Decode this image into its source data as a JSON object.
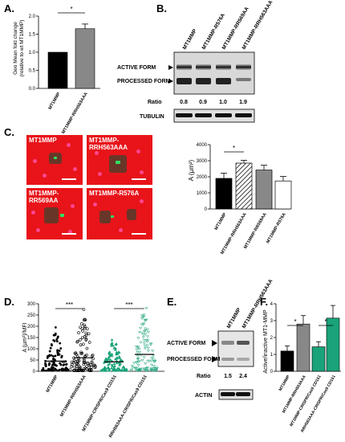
{
  "panels": {
    "A": {
      "letter": "A.",
      "ylabel_line1": "Geo Mean fold change",
      "ylabel_line2": "(relative to wt MT1MMP)",
      "sig": "*",
      "chart_data": {
        "type": "bar",
        "categories": [
          "MT1MMP",
          "MT1MMP-RRH563AAA"
        ],
        "values": [
          1.0,
          1.65
        ],
        "errors": [
          0.0,
          0.13
        ],
        "colors": [
          "#000000",
          "#888888"
        ],
        "ylim": [
          0,
          2
        ],
        "yticks": [
          "0.0",
          "0.5",
          "1.0",
          "1.5",
          "2.0"
        ]
      }
    },
    "B": {
      "letter": "B.",
      "lanes": [
        "MT1MMP",
        "MT1MMP-R576A",
        "MT1MMP-RR569AA",
        "MT1MMP-RRH563AAA"
      ],
      "active_label": "ACTIVE FORM",
      "processed_label": "PROCESSED FORM",
      "ratio_label": "Ratio",
      "ratios": [
        "0.8",
        "0.9",
        "1.0",
        "1.9"
      ],
      "tubulin_label": "TUBULIN"
    },
    "C": {
      "letter": "C.",
      "images": [
        "MT1MMP",
        "MT1MMP-RRH563AAA",
        "MT1MMP-RR569AA",
        "MT1MMP-R576A"
      ],
      "ylabel": "A (µm²)",
      "sig": "*",
      "chart_data": {
        "type": "bar",
        "categories": [
          "MT1MMP",
          "MT1MMP-RRH563AAA",
          "MT1MMP-RR569AA",
          "MT1MMP-R576A"
        ],
        "values": [
          1900,
          2850,
          2420,
          1740
        ],
        "errors": [
          330,
          180,
          300,
          280
        ],
        "fills": [
          "#000000",
          "hatch",
          "#888888",
          "#ffffff"
        ],
        "ylim": [
          0,
          4000
        ],
        "yticks": [
          "0",
          "1000",
          "2000",
          "3000",
          "4000"
        ]
      }
    },
    "D": {
      "letter": "D.",
      "ylabel": "A (µm²)/MFI",
      "sig1": "***",
      "sig2": "***",
      "chart_data": {
        "type": "scatter",
        "categories": [
          "MT1MMP",
          "MT1MMP-RRH563AAA",
          "MT1MMP-CRISPR/Cas9 CD151",
          "RRH563AAA-CRISPR/Cas9 CD151"
        ],
        "means": [
          45,
          60,
          42,
          75
        ],
        "maxes": [
          195,
          275,
          140,
          280
        ],
        "colors": [
          "#000000",
          "#000000",
          "#1aa37a",
          "#1aa37a"
        ],
        "ylim": [
          0,
          300
        ],
        "yticks": [
          "0",
          "50",
          "100",
          "150",
          "200",
          "250",
          "300"
        ]
      }
    },
    "E": {
      "letter": "E.",
      "lanes": [
        "MT1MMP",
        "MT1MMP-RRH563AAA"
      ],
      "active_label": "ACTIVE FORM",
      "processed_label": "PROCESSED FORM",
      "ratio_label": "Ratio",
      "ratios": [
        "1.5",
        "2.4"
      ],
      "actin_label": "ACTIN"
    },
    "F": {
      "letter": "F.",
      "ylabel": "Active/inactive MT1-MMP",
      "sig1": "*",
      "sig2": "*",
      "chart_data": {
        "type": "bar",
        "categories": [
          "MT1MMP",
          "MT1MMP-RRH563AAA",
          "MT1MMP-CRISPR/Cas9 CD151",
          "RRH563AAA-CRISPR/Cas9 CD151"
        ],
        "values": [
          1.2,
          2.8,
          1.45,
          3.15
        ],
        "errors": [
          0.3,
          0.5,
          0.3,
          0.75
        ],
        "colors": [
          "#000000",
          "#888888",
          "#1aa37a",
          "#1aa37a"
        ],
        "ylim": [
          0,
          4
        ],
        "yticks": [
          "0",
          "1",
          "2",
          "3",
          "4"
        ]
      }
    }
  }
}
